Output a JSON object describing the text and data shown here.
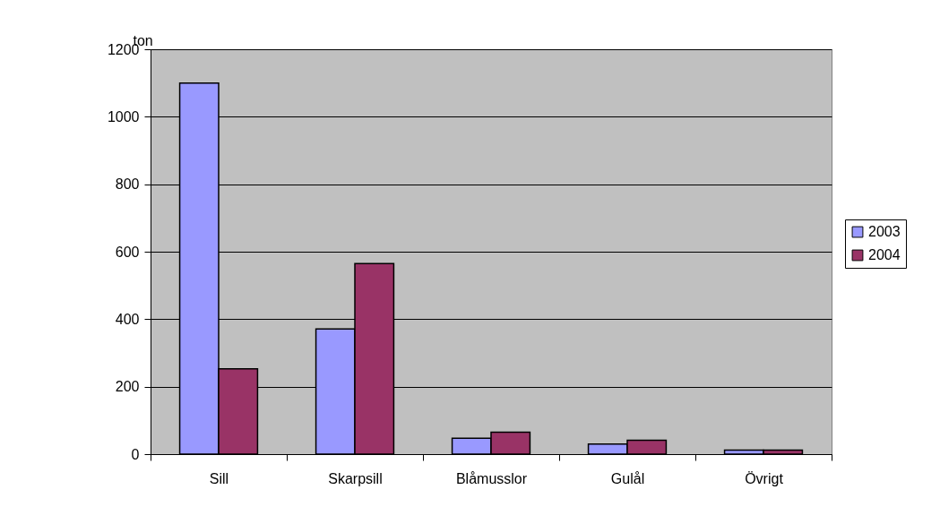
{
  "chart_data": {
    "type": "bar",
    "ylabel": "ton",
    "categories": [
      "Sill",
      "Skarpsill",
      "Blåmusslor",
      "Gulål",
      "Övrigt"
    ],
    "series": [
      {
        "name": "2003",
        "color": "#9999ff",
        "values": [
          1100,
          371,
          47,
          30,
          12
        ]
      },
      {
        "name": "2004",
        "color": "#993366",
        "values": [
          253,
          565,
          65,
          41,
          12
        ]
      }
    ],
    "ylim": [
      0,
      1200
    ],
    "yticks": [
      0,
      200,
      400,
      600,
      800,
      1000,
      1200
    ],
    "grid": "y",
    "legend": "right"
  }
}
